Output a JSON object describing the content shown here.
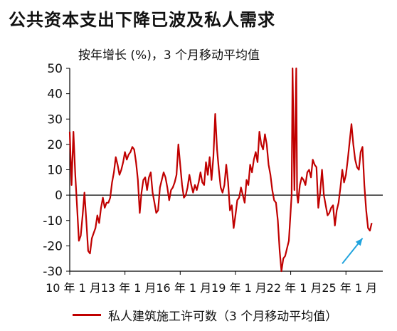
{
  "chart_data": {
    "type": "line",
    "title": "公共资本支出下降已波及私人需求",
    "subtitle": "按年增长 (%)，3 个月移动平均值",
    "ylim": [
      -30,
      50
    ],
    "yticks": [
      50,
      40,
      30,
      20,
      10,
      0,
      -10,
      -20,
      -30
    ],
    "xlim": [
      2010.0,
      2027.0
    ],
    "xticks": [
      {
        "x": 2010.0,
        "label": "10 年 1 月"
      },
      {
        "x": 2013.0,
        "label": "13 年 1 月"
      },
      {
        "x": 2016.0,
        "label": "16 年 1 月"
      },
      {
        "x": 2019.0,
        "label": "19 年 1 月"
      },
      {
        "x": 2022.0,
        "label": "22 年 1 月"
      },
      {
        "x": 2025.0,
        "label": "25 年 1 月"
      }
    ],
    "grid": false,
    "legend_position": "bottom",
    "series": [
      {
        "name": "私人建筑施工许可数（3 个月移动平均值）",
        "color": "#c00000",
        "points": [
          [
            2010.0,
            25
          ],
          [
            2010.1,
            4
          ],
          [
            2010.2,
            25
          ],
          [
            2010.3,
            8
          ],
          [
            2010.4,
            -5
          ],
          [
            2010.5,
            -18
          ],
          [
            2010.6,
            -16
          ],
          [
            2010.7,
            -8
          ],
          [
            2010.8,
            1
          ],
          [
            2010.9,
            -10
          ],
          [
            2011.0,
            -22
          ],
          [
            2011.1,
            -23
          ],
          [
            2011.2,
            -17
          ],
          [
            2011.3,
            -15
          ],
          [
            2011.4,
            -13
          ],
          [
            2011.5,
            -8
          ],
          [
            2011.6,
            -11
          ],
          [
            2011.7,
            -5
          ],
          [
            2011.8,
            -1
          ],
          [
            2011.9,
            -5
          ],
          [
            2012.0,
            -3
          ],
          [
            2012.1,
            -3
          ],
          [
            2012.2,
            -1
          ],
          [
            2012.3,
            5
          ],
          [
            2012.4,
            9
          ],
          [
            2012.5,
            15
          ],
          [
            2012.6,
            12
          ],
          [
            2012.7,
            8
          ],
          [
            2012.8,
            10
          ],
          [
            2012.9,
            13
          ],
          [
            2013.0,
            17
          ],
          [
            2013.1,
            14
          ],
          [
            2013.2,
            16
          ],
          [
            2013.3,
            17
          ],
          [
            2013.4,
            19
          ],
          [
            2013.5,
            18
          ],
          [
            2013.6,
            13
          ],
          [
            2013.7,
            6
          ],
          [
            2013.8,
            -7
          ],
          [
            2013.9,
            1
          ],
          [
            2014.0,
            6
          ],
          [
            2014.1,
            7
          ],
          [
            2014.2,
            2
          ],
          [
            2014.3,
            7
          ],
          [
            2014.4,
            9
          ],
          [
            2014.5,
            1
          ],
          [
            2014.6,
            -3
          ],
          [
            2014.7,
            -7
          ],
          [
            2014.8,
            -6
          ],
          [
            2014.9,
            3
          ],
          [
            2015.0,
            6
          ],
          [
            2015.1,
            9
          ],
          [
            2015.2,
            7
          ],
          [
            2015.3,
            3
          ],
          [
            2015.4,
            -2
          ],
          [
            2015.5,
            2
          ],
          [
            2015.6,
            3
          ],
          [
            2015.7,
            5
          ],
          [
            2015.8,
            8
          ],
          [
            2015.9,
            20
          ],
          [
            2016.0,
            12
          ],
          [
            2016.1,
            4
          ],
          [
            2016.2,
            -1
          ],
          [
            2016.3,
            0
          ],
          [
            2016.4,
            3
          ],
          [
            2016.5,
            8
          ],
          [
            2016.6,
            4
          ],
          [
            2016.7,
            1
          ],
          [
            2016.8,
            4
          ],
          [
            2016.9,
            2
          ],
          [
            2017.0,
            5
          ],
          [
            2017.1,
            9
          ],
          [
            2017.2,
            5
          ],
          [
            2017.3,
            4
          ],
          [
            2017.4,
            13
          ],
          [
            2017.5,
            8
          ],
          [
            2017.6,
            15
          ],
          [
            2017.7,
            6
          ],
          [
            2017.8,
            15
          ],
          [
            2017.9,
            32
          ],
          [
            2018.0,
            18
          ],
          [
            2018.1,
            10
          ],
          [
            2018.2,
            3
          ],
          [
            2018.3,
            1
          ],
          [
            2018.4,
            4
          ],
          [
            2018.5,
            12
          ],
          [
            2018.6,
            5
          ],
          [
            2018.7,
            -6
          ],
          [
            2018.8,
            -4
          ],
          [
            2018.9,
            -13
          ],
          [
            2019.0,
            -8
          ],
          [
            2019.1,
            -2
          ],
          [
            2019.2,
            -1
          ],
          [
            2019.3,
            3
          ],
          [
            2019.4,
            0
          ],
          [
            2019.5,
            -3
          ],
          [
            2019.6,
            6
          ],
          [
            2019.7,
            4
          ],
          [
            2019.8,
            12
          ],
          [
            2019.9,
            9
          ],
          [
            2020.0,
            14
          ],
          [
            2020.1,
            17
          ],
          [
            2020.2,
            13
          ],
          [
            2020.3,
            25
          ],
          [
            2020.4,
            20
          ],
          [
            2020.5,
            18
          ],
          [
            2020.6,
            24
          ],
          [
            2020.7,
            20
          ],
          [
            2020.8,
            12
          ],
          [
            2020.9,
            8
          ],
          [
            2021.0,
            2
          ],
          [
            2021.1,
            -2
          ],
          [
            2021.2,
            -3
          ],
          [
            2021.3,
            -10
          ],
          [
            2021.4,
            -22
          ],
          [
            2021.5,
            -30
          ],
          [
            2021.6,
            -25
          ],
          [
            2021.7,
            -24
          ],
          [
            2021.8,
            -21
          ],
          [
            2021.9,
            -18
          ],
          [
            2022.0,
            -6
          ],
          [
            2022.05,
            0
          ],
          [
            2022.1,
            50
          ],
          [
            2022.2,
            2
          ],
          [
            2022.3,
            50
          ],
          [
            2022.35,
            0
          ],
          [
            2022.4,
            -3
          ],
          [
            2022.5,
            4
          ],
          [
            2022.6,
            7
          ],
          [
            2022.7,
            6
          ],
          [
            2022.8,
            4
          ],
          [
            2022.9,
            9
          ],
          [
            2023.0,
            10
          ],
          [
            2023.1,
            7
          ],
          [
            2023.2,
            14
          ],
          [
            2023.3,
            12
          ],
          [
            2023.4,
            11
          ],
          [
            2023.5,
            -5
          ],
          [
            2023.6,
            1
          ],
          [
            2023.7,
            10
          ],
          [
            2023.8,
            0
          ],
          [
            2023.9,
            -4
          ],
          [
            2024.0,
            -8
          ],
          [
            2024.1,
            -7
          ],
          [
            2024.2,
            -5
          ],
          [
            2024.3,
            -4
          ],
          [
            2024.4,
            -12
          ],
          [
            2024.5,
            -6
          ],
          [
            2024.6,
            -3
          ],
          [
            2024.7,
            3
          ],
          [
            2024.8,
            10
          ],
          [
            2024.9,
            5
          ],
          [
            2025.0,
            8
          ],
          [
            2025.1,
            14
          ],
          [
            2025.2,
            21
          ],
          [
            2025.3,
            28
          ],
          [
            2025.4,
            20
          ],
          [
            2025.5,
            14
          ],
          [
            2025.6,
            11
          ],
          [
            2025.7,
            10
          ],
          [
            2025.8,
            17
          ],
          [
            2025.9,
            19
          ],
          [
            2026.0,
            4
          ],
          [
            2026.1,
            -6
          ],
          [
            2026.2,
            -13
          ],
          [
            2026.3,
            -14
          ],
          [
            2026.4,
            -11
          ]
        ]
      }
    ],
    "annotations": [
      {
        "type": "arrow",
        "color": "#1fa3dd",
        "from": [
          2024.8,
          -27
        ],
        "to": [
          2025.9,
          -17
        ]
      }
    ]
  }
}
